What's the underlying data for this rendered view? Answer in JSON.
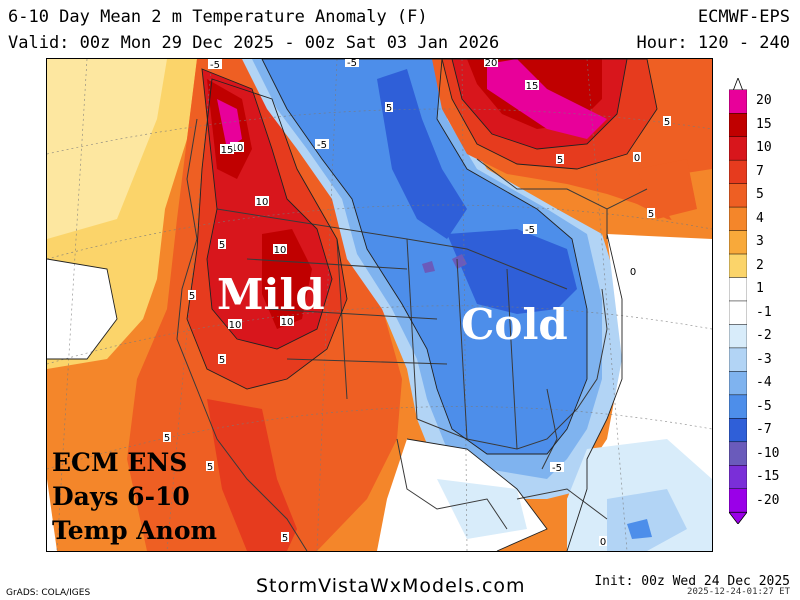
{
  "header": {
    "title": "6-10 Day Mean 2 m Temperature Anomaly (F)",
    "valid": "Valid: 00z Mon 29 Dec 2025 - 00z Sat 03 Jan 2026",
    "model": "ECMWF-EPS",
    "hours": "Hour: 120 - 240"
  },
  "map": {
    "labels": {
      "warm": "Mild",
      "cold": "Cold"
    },
    "overlay": [
      "ECM ENS",
      "Days 6-10",
      "Temp Anom"
    ],
    "contour_labels": [
      "-5",
      "-5",
      "-5",
      "-5",
      "-5",
      "20",
      "15",
      "10",
      "15",
      "10",
      "10",
      "10",
      "10",
      "5",
      "5",
      "5",
      "5",
      "5",
      "5",
      "5",
      "5",
      "5",
      "5",
      "0",
      "0",
      "0"
    ]
  },
  "colorbar": {
    "ticks": [
      "20",
      "15",
      "10",
      "7",
      "5",
      "4",
      "3",
      "2",
      "1",
      "-1",
      "-2",
      "-3",
      "-4",
      "-5",
      "-7",
      "-10",
      "-15",
      "-20"
    ],
    "colors": [
      "#e8009a",
      "#c00000",
      "#d8161c",
      "#e63b1e",
      "#ee5f23",
      "#f4862a",
      "#f8a93a",
      "#fbd46a",
      "#ffffff",
      "#ffffff",
      "#d8ecfa",
      "#b2d4f5",
      "#7fb3ef",
      "#4d8eea",
      "#2f5fd8",
      "#6a5bbb",
      "#7a2fd8",
      "#9a00e8"
    ]
  },
  "footer": {
    "site": "StormVistaWxModels.com",
    "init": "Init: 00z Wed 24 Dec 2025",
    "stamp": "2025-12-24-01:27 ET",
    "grads": "GrADS: COLA/IGES"
  }
}
